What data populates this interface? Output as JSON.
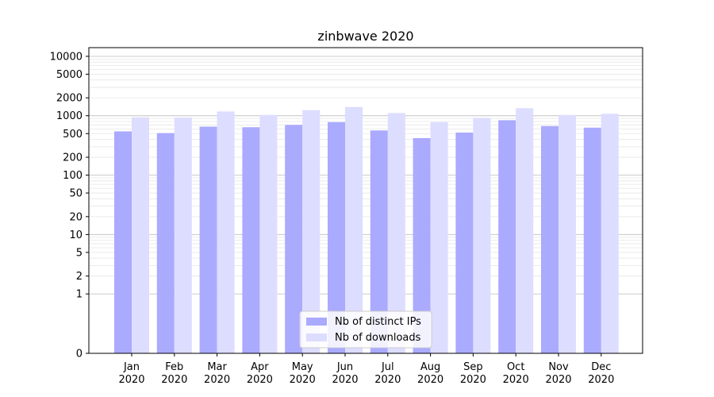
{
  "chart_data": {
    "type": "bar",
    "title": "zinbwave 2020",
    "xlabel": "",
    "ylabel": "",
    "yscale": "symlog",
    "ylim": [
      0,
      14000
    ],
    "yticks": [
      0,
      1,
      2,
      5,
      10,
      20,
      50,
      100,
      200,
      500,
      1000,
      2000,
      5000,
      10000
    ],
    "ytick_labels": [
      "0",
      "1",
      "2",
      "5",
      "10",
      "20",
      "50",
      "100",
      "200",
      "500",
      "1000",
      "2000",
      "5000",
      "10000"
    ],
    "categories": [
      "Jan\n2020",
      "Feb\n2020",
      "Mar\n2020",
      "Apr\n2020",
      "May\n2020",
      "Jun\n2020",
      "Jul\n2020",
      "Aug\n2020",
      "Sep\n2020",
      "Oct\n2020",
      "Nov\n2020",
      "Dec\n2020"
    ],
    "category_lines": [
      [
        "Jan",
        "2020"
      ],
      [
        "Feb",
        "2020"
      ],
      [
        "Mar",
        "2020"
      ],
      [
        "Apr",
        "2020"
      ],
      [
        "May",
        "2020"
      ],
      [
        "Jun",
        "2020"
      ],
      [
        "Jul",
        "2020"
      ],
      [
        "Aug",
        "2020"
      ],
      [
        "Sep",
        "2020"
      ],
      [
        "Oct",
        "2020"
      ],
      [
        "Nov",
        "2020"
      ],
      [
        "Dec",
        "2020"
      ]
    ],
    "series": [
      {
        "name": "Nb of distinct IPs",
        "color": "#aaaaff",
        "values": [
          545,
          510,
          655,
          640,
          700,
          780,
          565,
          420,
          520,
          840,
          670,
          630
        ]
      },
      {
        "name": "Nb of downloads",
        "color": "#ddddff",
        "values": [
          940,
          930,
          1180,
          1030,
          1240,
          1400,
          1110,
          780,
          920,
          1340,
          1030,
          1080
        ]
      }
    ],
    "grid": true,
    "legend_position": "bottom-center"
  }
}
